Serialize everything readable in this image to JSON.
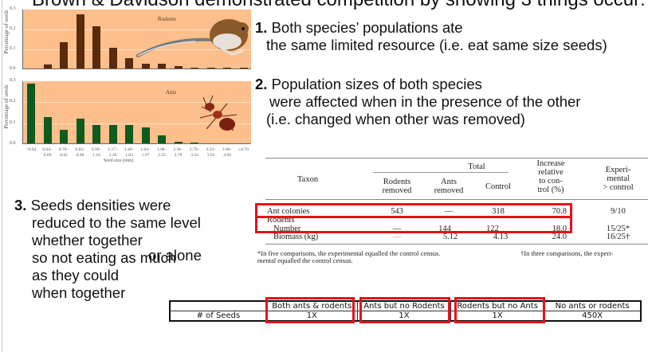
{
  "slide": {
    "title": "Brown & Davidson demonstrated competition by showing 3 things occur:"
  },
  "chart_data": [
    {
      "type": "bar",
      "title": "Rodents",
      "xlabel": "Seed size (mm)",
      "ylabel": "Percentage of seeds",
      "ylim": [
        0,
        0.3
      ],
      "yticks": [
        "0.0",
        "0.1",
        "0.2",
        "0.3"
      ],
      "grid": true,
      "categories": [
        "<0.64",
        "0.64–0.69",
        "0.70–0.82",
        "0.83–0.98",
        "0.99–1.16",
        "1.17–1.39",
        "1.40–1.63",
        "1.64–1.97",
        "1.98–2.35",
        "2.36–2.78",
        "2.79–3.32",
        "3.33–3.95",
        "3.96–4.69",
        "≥4.70"
      ],
      "values": [
        0.0,
        0.025,
        0.135,
        0.275,
        0.215,
        0.11,
        0.055,
        0.027,
        0.027,
        0.018,
        0.008,
        0.008,
        0.008,
        0.008
      ],
      "bar_color": "#5a2a0c"
    },
    {
      "type": "bar",
      "title": "Ants",
      "xlabel": "Seed size (mm)",
      "ylabel": "Percentage of seeds",
      "ylim": [
        0,
        0.3
      ],
      "yticks": [
        "0.0",
        "0.1",
        "0.2",
        "0.3"
      ],
      "grid": true,
      "categories": [
        "<0.64",
        "0.64–0.69",
        "0.70–0.82",
        "0.83–0.98",
        "0.99–1.16",
        "1.17–1.39",
        "1.40–1.63",
        "1.64–1.97",
        "1.98–2.35",
        "2.36–2.78",
        "2.79–3.32",
        "3.33–3.95",
        "3.96–4.69",
        "≥4.70"
      ],
      "values": [
        0.29,
        0.13,
        0.07,
        0.12,
        0.09,
        0.09,
        0.09,
        0.08,
        0.04,
        0.012,
        0.008,
        0.0,
        0.0,
        0.0
      ],
      "bar_color": "#0f5a1e"
    }
  ],
  "charts": {
    "rodents_label": "Rodents",
    "ants_label": "Ants",
    "ylabel": "Percentage of seeds",
    "xlabel": "Seed size (mm)",
    "yticks": [
      "0.3",
      "0.2",
      "0.1",
      "0.0"
    ],
    "xticks": [
      {
        "top": "<0.64",
        "bottom": ""
      },
      {
        "top": "0.64–",
        "bottom": "0.69"
      },
      {
        "top": "0.70–",
        "bottom": "0.82"
      },
      {
        "top": "0.83–",
        "bottom": "0.98"
      },
      {
        "top": "0.99–",
        "bottom": "1.16"
      },
      {
        "top": "1.17–",
        "bottom": "1.39"
      },
      {
        "top": "1.40–",
        "bottom": "1.63"
      },
      {
        "top": "1.64–",
        "bottom": "1.97"
      },
      {
        "top": "1.98–",
        "bottom": "2.35"
      },
      {
        "top": "2.36–",
        "bottom": "2.78"
      },
      {
        "top": "2.79–",
        "bottom": "3.32"
      },
      {
        "top": "3.33–",
        "bottom": "3.95"
      },
      {
        "top": "3.96–",
        "bottom": "4.69"
      },
      {
        "top": "≥4.70",
        "bottom": ""
      }
    ]
  },
  "points": {
    "p1": {
      "num": "1.",
      "line1": " Both species’ populations ate",
      "line2": "the same limited resource (i.e. eat same size seeds)"
    },
    "p2": {
      "num": "2.",
      "line1": " Population sizes of both species",
      "line2": "were affected when in the presence of the other",
      "line3": "(i.e. changed when other was removed)"
    },
    "p3": {
      "num": "3.",
      "line1": " Seeds densities were",
      "line2": "reduced to the same level",
      "line3": "whether together",
      "line4": "so not eating as much",
      "overlap": "or alone",
      "line5": "as they could",
      "line6": "when together"
    }
  },
  "data_table": {
    "headers": {
      "taxon": "Taxon",
      "total": "Total",
      "rodents_removed_1": "Rodents",
      "rodents_removed_2": "removed",
      "ants_removed_1": "Ants",
      "ants_removed_2": "removed",
      "control": "Control",
      "increase_1": "Increase",
      "increase_2": "relative",
      "increase_3": "to con-",
      "increase_4": "trol (%)",
      "exp_1": "Experi-",
      "exp_2": "mental",
      "exp_3": "> control"
    },
    "rows": [
      {
        "taxon": "Ant colonies",
        "rodents_removed": "543",
        "ants_removed": "—",
        "control": "318",
        "increase": "70.8",
        "exp": "9/10"
      },
      {
        "taxon": "Rodents",
        "rodents_removed": "",
        "ants_removed": "",
        "control": "",
        "increase": "",
        "exp": ""
      },
      {
        "taxon": "Number",
        "rodents_removed": "—",
        "ants_removed": "144",
        "control": "122",
        "increase": "18.0",
        "exp": "15/25*"
      },
      {
        "taxon": "Biomass (kg)",
        "rodents_removed": "—",
        "ants_removed": "5.12",
        "control": "4.13",
        "increase": "24.0",
        "exp": "16/25†"
      }
    ],
    "footnote_1a": "*In five comparisons, the experimental equalled the control census.",
    "footnote_1b": "†In three comparisons, the experi-",
    "footnote_2": "mental equalled the control census."
  },
  "seed_table": {
    "headers": [
      "",
      "Both ants & rodents",
      "Ants but no Rodents",
      "Rodents but no Ants",
      "No ants or rodents"
    ],
    "row_label": "# of Seeds",
    "values": [
      "1X",
      "1X",
      "1X",
      "450X"
    ]
  },
  "colors": {
    "highlight": "#e8101a",
    "chart_bg": "#fdbf8c",
    "rodent_bar": "#5a2a0c",
    "ant_bar": "#0f5a1e"
  }
}
